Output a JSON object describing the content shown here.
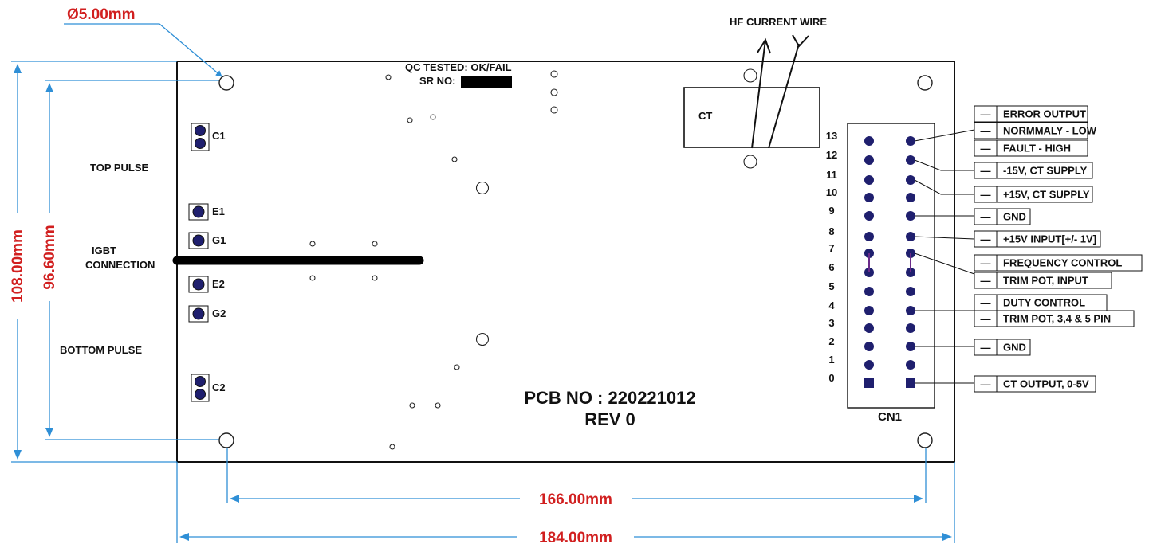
{
  "colors": {
    "dimension_text": "#d11f1f",
    "dimension_line": "#2f8fd6",
    "pin": "#1f1f6e",
    "outline": "#111111"
  },
  "dimensions": {
    "hole_diameter": "Ø5.00mm",
    "height_outer": "108.00mm",
    "height_inner": "96.60mm",
    "width_inner": "166.00mm",
    "width_outer": "184.00mm"
  },
  "board": {
    "qc_label": "QC TESTED: OK/FAIL",
    "sr_label": "SR NO:",
    "pcb_no": "PCB NO : 220221012",
    "rev": "REV 0",
    "ct_label": "CT",
    "hf_label": "HF CURRENT WIRE",
    "cn1_label": "CN1"
  },
  "left_labels": {
    "top_pulse": "TOP PULSE",
    "igbt_line1": "IGBT",
    "igbt_line2": "CONNECTION",
    "bottom_pulse": "BOTTOM  PULSE"
  },
  "terminals": [
    "C1",
    "E1",
    "G1",
    "E2",
    "G2",
    "C2"
  ],
  "pin_numbers": [
    "13",
    "12",
    "11",
    "10",
    "9",
    "8",
    "7",
    "6",
    "5",
    "4",
    "3",
    "2",
    "1",
    "0"
  ],
  "signal_boxes": [
    {
      "dash": "—",
      "text": "ERROR OUTPUT"
    },
    {
      "dash": "—",
      "text": "NORMMALY - LOW"
    },
    {
      "dash": "—",
      "text": "FAULT - HIGH"
    },
    {
      "dash": "—",
      "text": "-15V, CT SUPPLY"
    },
    {
      "dash": "—",
      "text": "+15V, CT SUPPLY"
    },
    {
      "dash": "—",
      "text": "GND"
    },
    {
      "dash": "—",
      "text": "+15V INPUT[+/- 1V]"
    },
    {
      "dash": "—",
      "text": "FREQUENCY CONTROL"
    },
    {
      "dash": "—",
      "text": "TRIM POT, INPUT"
    },
    {
      "dash": "—",
      "text": "DUTY CONTROL"
    },
    {
      "dash": "—",
      "text": "TRIM POT, 3,4 & 5 PIN"
    },
    {
      "dash": "—",
      "text": "GND"
    },
    {
      "dash": "—",
      "text": "CT OUTPUT, 0-5V"
    }
  ]
}
